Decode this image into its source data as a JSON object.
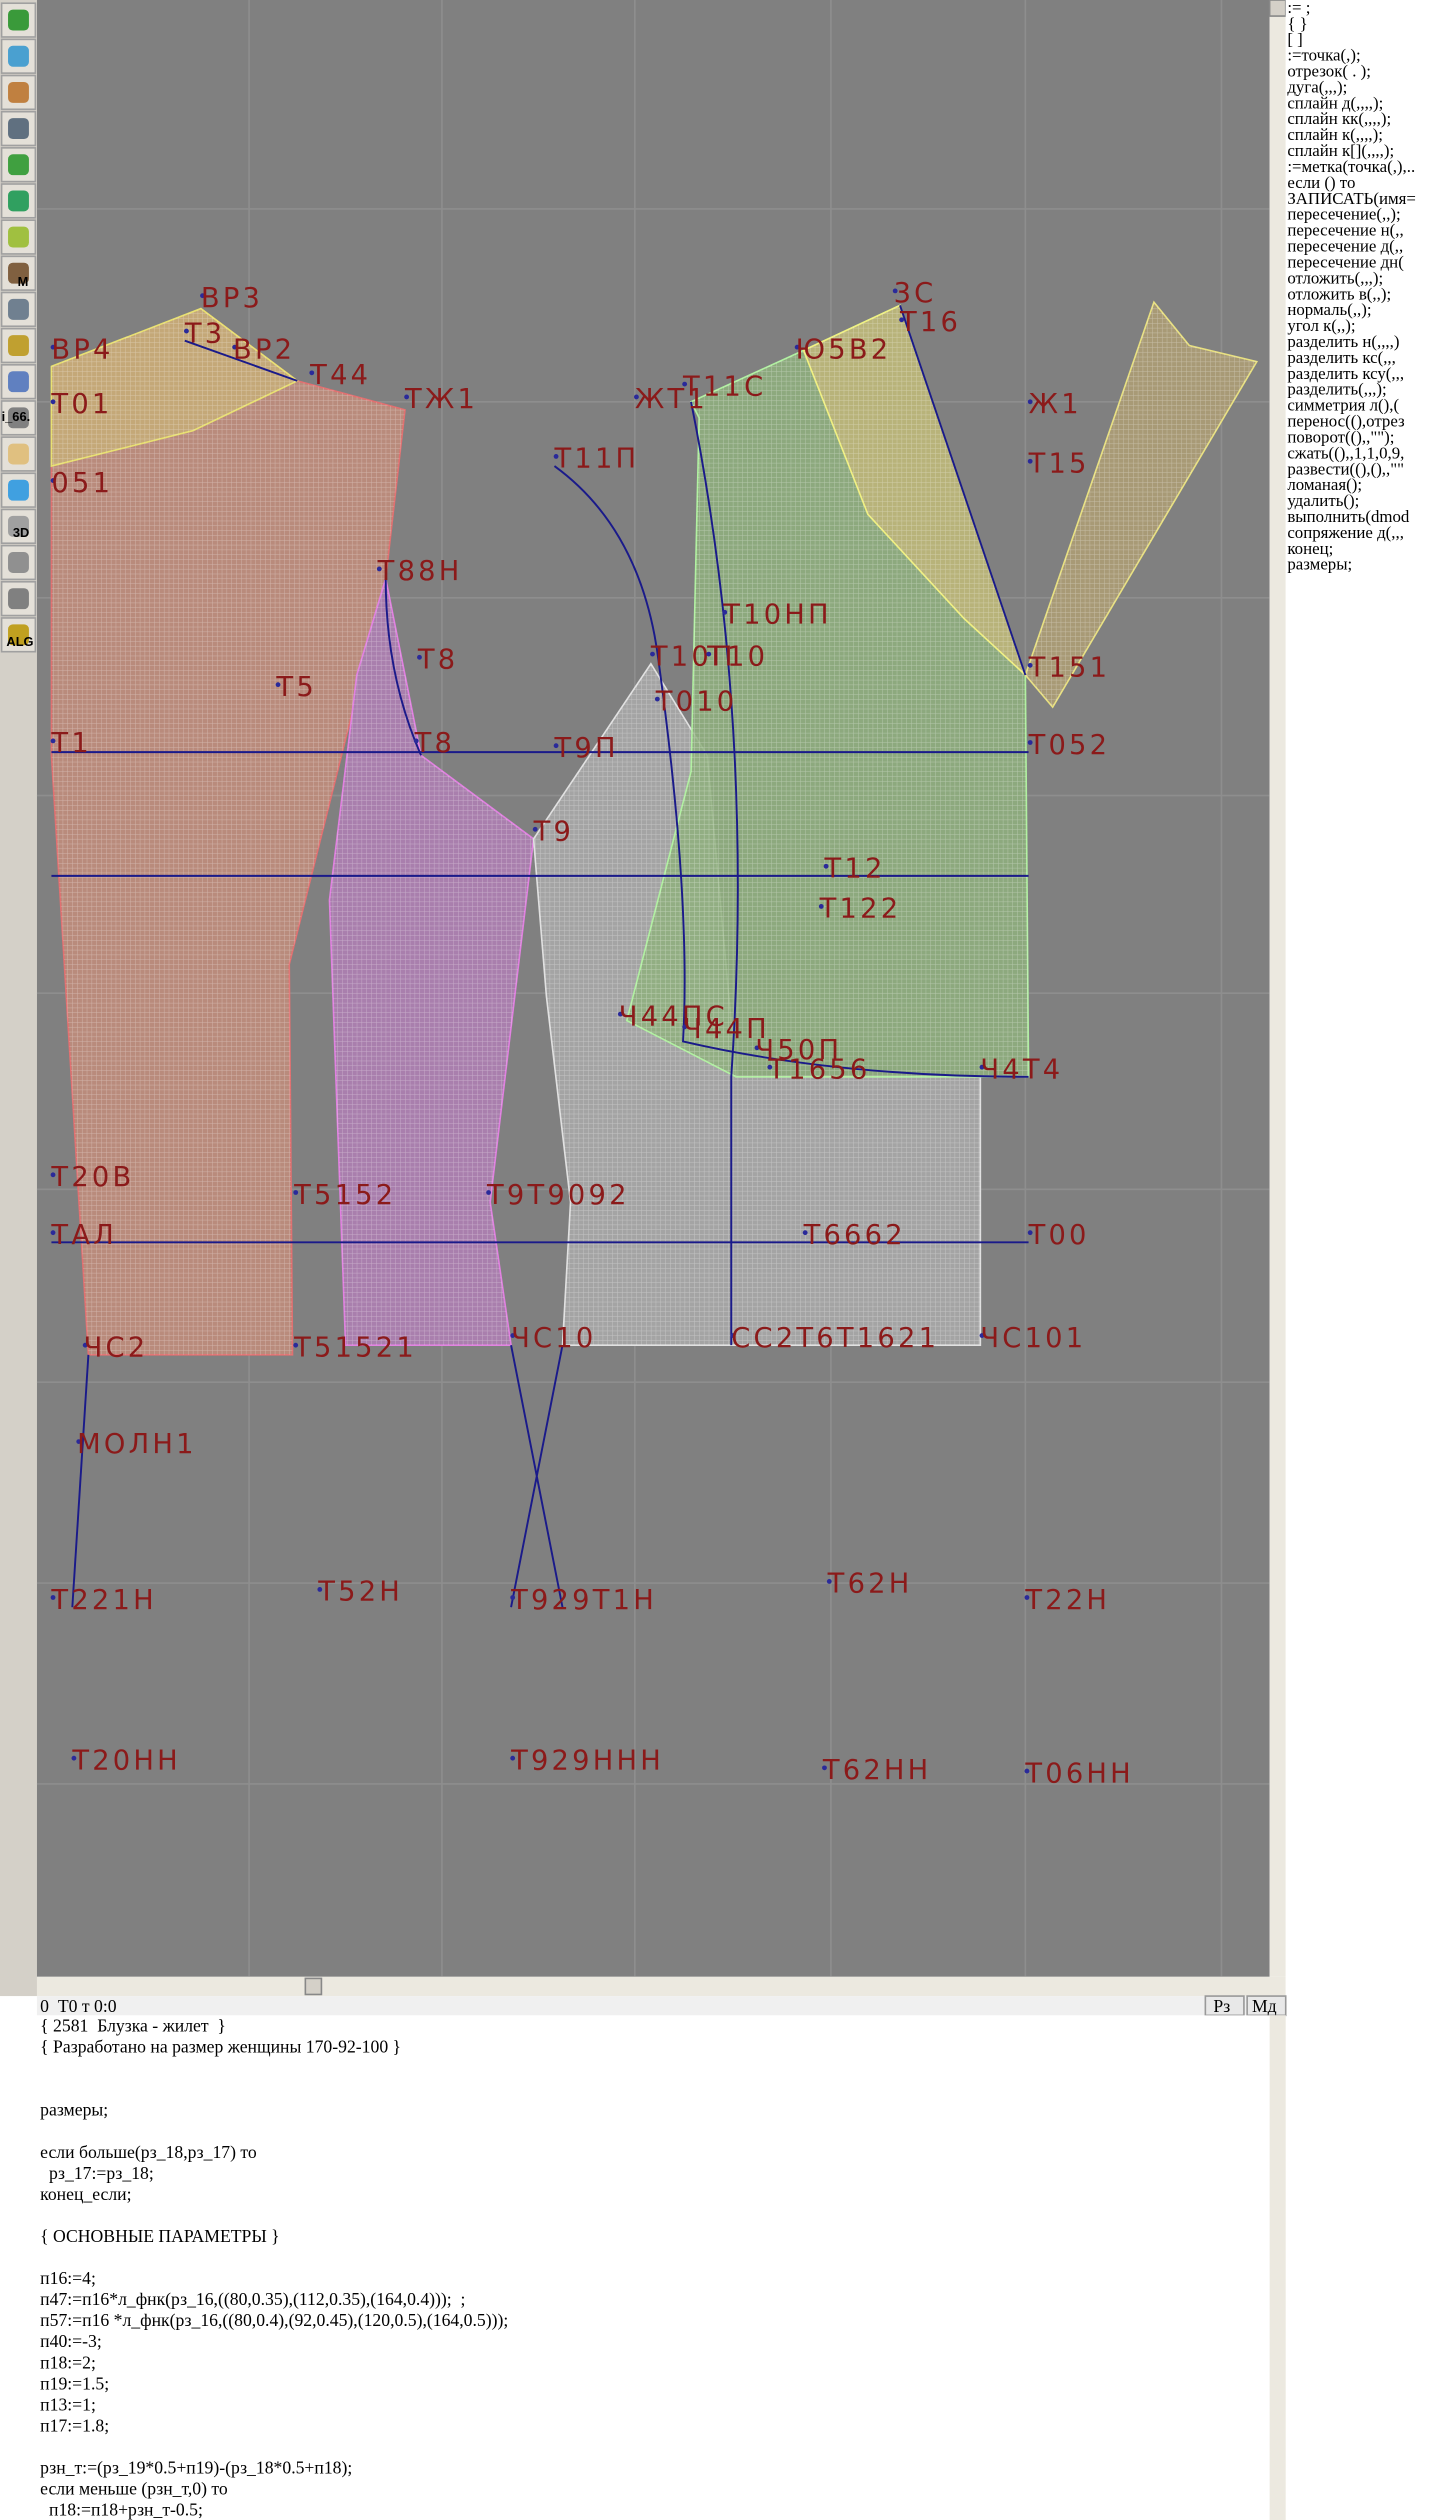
{
  "toolbar": {
    "labels": [
      "M",
      "3D",
      "ALG",
      "i_66."
    ]
  },
  "canvas": {
    "point_labels": [
      "ВР3",
      "ВР4",
      "Т3",
      "ВР2",
      "Т44",
      "ТЖ1",
      "Т01",
      "051",
      "Т11П",
      "Т88Н",
      "Т8",
      "Т5",
      "Т1",
      "Т8",
      "Т9П",
      "Т10П",
      "Т10",
      "Т010",
      "Т10НП",
      "Т9",
      "Т12",
      "Т122",
      "Ч44ПС",
      "Ч44П",
      "Ч50П",
      "Т1656",
      "Ч4Т4",
      "Т20В",
      "Т5152",
      "Т9Т9092",
      "ТАЛ",
      "Т6662",
      "Т00",
      "ЧС2",
      "Т51521",
      "ЧС10",
      "СС2Т6Т1621",
      "ЧС101",
      "МОЛН1",
      "Т221Н",
      "Т52Н",
      "Т929Т1Н",
      "Т62Н",
      "Т22Н",
      "Т20НН",
      "Т929ННН",
      "Т62НН",
      "Т06НН",
      "3С",
      "Т16",
      "Ю5В2",
      "Т11С",
      "Ж1",
      "Т15",
      "Т151",
      "Т052",
      "ЖТ1"
    ]
  },
  "commands": [
    ":= ;",
    "{  }",
    "[  ]",
    ":=точка(,);",
    "отрезок( . );",
    "дуга(,,,);",
    "сплайн  д(,,,,);",
    "сплайн  кк(,,,,);",
    "сплайн  к(,,,,);",
    "сплайн  к[](,,,,);",
    ":=метка(точка(,),..",
    "если () то",
    "ЗАПИСАТЬ(имя=",
    "пересечение(,,);",
    "пересечение  н(,,",
    "пересечение  д(,,",
    "пересечение  дн(",
    "отложить(,,,);",
    "отложить  в(,,);",
    "нормаль(,,);",
    "угол  к(,,);",
    "разделить  н(,,,,)",
    "разделить  кс(,,,",
    "разделить  ксу(,,,",
    "разделить(,,,);",
    "симметрия  л(),(",
    "перенос((),отрез",
    "поворот((),,\"\");",
    "сжать((),,1,1,0,9,",
    "развести((),(),,\"\"",
    "ломаная();",
    "удалить();",
    "выполнить(dmod",
    "сопряжение  д(,,,",
    "конец;",
    "размеры;"
  ],
  "status": {
    "position": "0  Т0 т 0:0",
    "buttons": [
      "Рз",
      "Мд"
    ]
  },
  "editor": {
    "lines": [
      "{ 2581  Блузка - жилет  }",
      "{ Разработано на размер женщины 170-92-100 }",
      "размеры;",
      "если больше(рз_18,рз_17) то",
      "  рз_17:=рз_18;",
      "конец_если;",
      "{ ОСНОВНЫЕ ПАРАМЕТРЫ }",
      "п16:=4;",
      "п47:=п16*л_фнк(рз_16,((80,0.35),(112,0.35),(164,0.4)));  ;",
      "п57:=п16 *л_фнк(рз_16,((80,0.4),(92,0.45),(120,0.5),(164,0.5)));",
      "п40:=-3;",
      "п18:=2;",
      "п19:=1.5;",
      "п13:=1;",
      "п17:=1.8;",
      "рзн_т:=(рз_19*0.5+п19)-(рз_18*0.5+п18);",
      "если меньше (рзн_т,0) то",
      "  п18:=п18+рзн_т-0.5;"
    ]
  }
}
